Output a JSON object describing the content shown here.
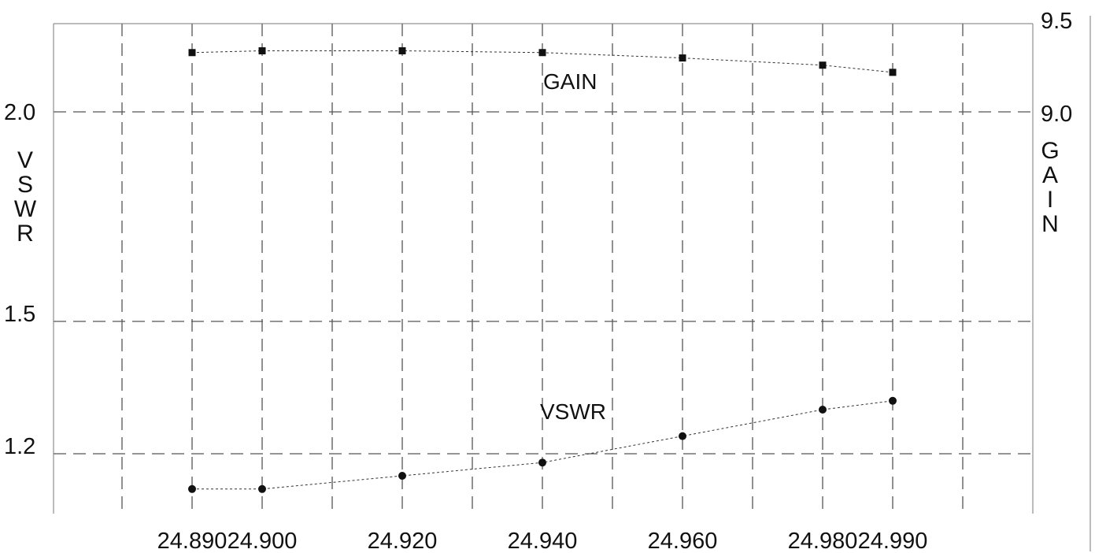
{
  "chart_data": {
    "type": "line",
    "x": [
      24.89,
      24.9,
      24.92,
      24.94,
      24.96,
      24.98,
      24.99
    ],
    "x_tick_labels": [
      "24.890",
      "24.900",
      "24.920",
      "24.940",
      "24.960",
      "24.980",
      "24.990"
    ],
    "left_axis": {
      "label": "VSWR",
      "ticks": [
        2.0,
        1.5,
        1.2
      ],
      "tick_labels": [
        "2.0",
        "1.5",
        "1.2"
      ]
    },
    "right_axis": {
      "label": "GAIN",
      "ticks": [
        9.5,
        9.0
      ],
      "tick_labels": [
        "9.5",
        "9.0"
      ]
    },
    "series": [
      {
        "name": "GAIN",
        "axis": "right",
        "marker": "square",
        "values": [
          9.33,
          9.34,
          9.34,
          9.33,
          9.3,
          9.26,
          9.22
        ]
      },
      {
        "name": "VSWR",
        "axis": "left",
        "marker": "circle",
        "values": [
          1.12,
          1.12,
          1.15,
          1.18,
          1.24,
          1.3,
          1.32
        ]
      }
    ],
    "grid": true,
    "legend": "inline labels"
  }
}
